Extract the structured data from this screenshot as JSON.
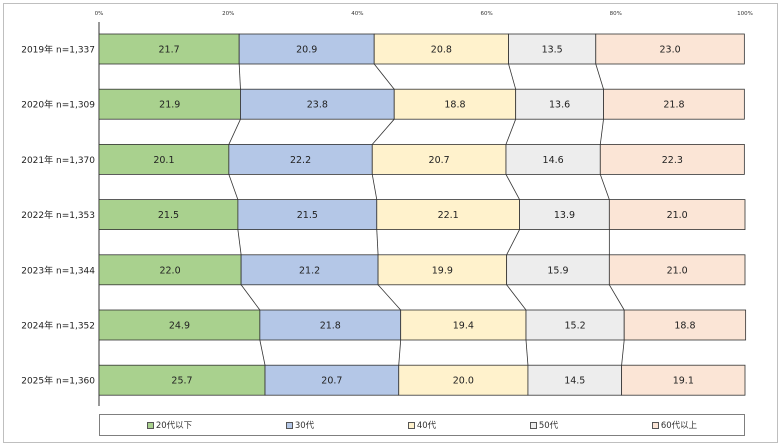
{
  "chart_data": {
    "type": "bar",
    "stacked": true,
    "percent": true,
    "orientation": "horizontal",
    "title": "",
    "xlabel": "",
    "ylabel": "",
    "xlim": [
      0,
      100
    ],
    "x_tick_labels": [
      "0%",
      "20%",
      "40%",
      "60%",
      "80%",
      "100%"
    ],
    "categories": [
      "2019年 n=1,337",
      "2020年 n=1,309",
      "2021年 n=1,370",
      "2022年 n=1,353",
      "2023年 n=1,344",
      "2024年 n=1,352",
      "2025年 n=1,360"
    ],
    "series": [
      {
        "name": "20代以下",
        "color": "#a9d18e",
        "values": [
          21.7,
          21.9,
          20.1,
          21.5,
          22.0,
          24.9,
          25.7
        ]
      },
      {
        "name": "30代",
        "color": "#b4c7e7",
        "values": [
          20.9,
          23.8,
          22.2,
          21.5,
          21.2,
          21.8,
          20.7
        ]
      },
      {
        "name": "40代",
        "color": "#fff2cc",
        "values": [
          20.8,
          18.8,
          20.7,
          22.1,
          19.9,
          19.4,
          20.0
        ]
      },
      {
        "name": "50代",
        "color": "#ededed",
        "values": [
          13.5,
          13.6,
          14.6,
          13.9,
          15.9,
          15.2,
          14.5
        ]
      },
      {
        "name": "60代以上",
        "color": "#fbe5d6",
        "values": [
          23.0,
          21.8,
          22.3,
          21.0,
          21.0,
          18.8,
          19.1
        ]
      }
    ],
    "value_labels": [
      [
        "21.7",
        "20.9",
        "20.8",
        "13.5",
        "23.0"
      ],
      [
        "21.9",
        "23.8",
        "18.8",
        "13.6",
        "21.8"
      ],
      [
        "20.1",
        "22.2",
        "20.7",
        "14.6",
        "22.3"
      ],
      [
        "21.5",
        "21.5",
        "22.1",
        "13.9",
        "21.0"
      ],
      [
        "22.0",
        "21.2",
        "19.9",
        "15.9",
        "21.0"
      ],
      [
        "24.9",
        "21.8",
        "19.4",
        "15.2",
        "18.8"
      ],
      [
        "25.7",
        "20.7",
        "20.0",
        "14.5",
        "19.1"
      ]
    ],
    "legend_position": "bottom",
    "series_lines": true,
    "grid": false
  }
}
